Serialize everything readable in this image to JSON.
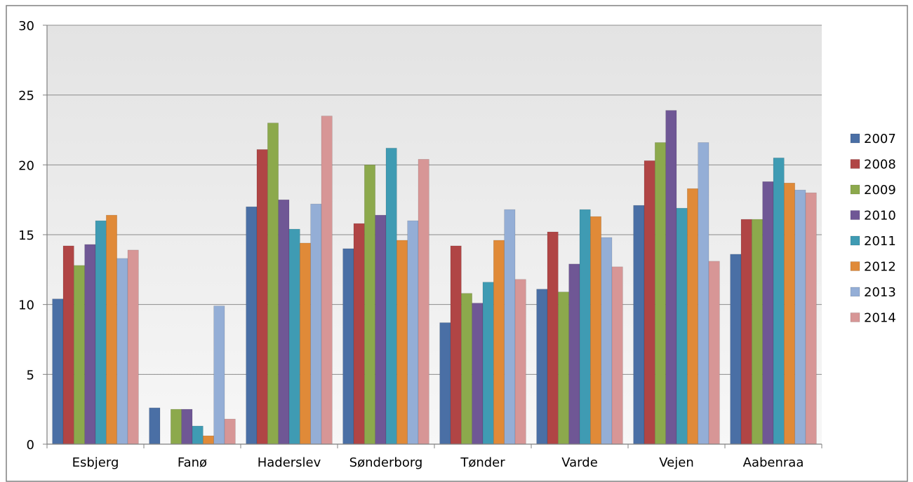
{
  "chart_data": {
    "type": "bar",
    "title": "",
    "xlabel": "",
    "ylabel": "",
    "ylim": [
      0,
      30
    ],
    "yticks": [
      0,
      5,
      10,
      15,
      20,
      25,
      30
    ],
    "grid": true,
    "legend_position": "right",
    "categories": [
      "Esbjerg",
      "Fanø",
      "Haderslev",
      "Sønderborg",
      "Tønder",
      "Varde",
      "Vejen",
      "Aabenraa"
    ],
    "series": [
      {
        "name": "2007",
        "color": "#4a6fa5",
        "values": [
          10.4,
          2.6,
          17.0,
          14.0,
          8.7,
          11.1,
          17.1,
          13.6
        ]
      },
      {
        "name": "2008",
        "color": "#b04545",
        "values": [
          14.2,
          null,
          21.1,
          15.8,
          14.2,
          15.2,
          20.3,
          16.1
        ]
      },
      {
        "name": "2009",
        "color": "#8ca94c",
        "values": [
          12.8,
          2.5,
          23.0,
          20.0,
          10.8,
          10.9,
          21.6,
          16.1
        ]
      },
      {
        "name": "2010",
        "color": "#6f5795",
        "values": [
          14.3,
          2.5,
          17.5,
          16.4,
          10.1,
          12.9,
          23.9,
          18.8
        ]
      },
      {
        "name": "2011",
        "color": "#3f9bb3",
        "values": [
          16.0,
          1.3,
          15.4,
          21.2,
          11.6,
          16.8,
          16.9,
          20.5
        ]
      },
      {
        "name": "2012",
        "color": "#e08a38",
        "values": [
          16.4,
          0.6,
          14.4,
          14.6,
          14.6,
          16.3,
          18.3,
          18.7
        ]
      },
      {
        "name": "2013",
        "color": "#94aed6",
        "values": [
          13.3,
          9.9,
          17.2,
          16.0,
          16.8,
          14.8,
          21.6,
          18.2
        ]
      },
      {
        "name": "2014",
        "color": "#d79696",
        "values": [
          13.9,
          1.8,
          23.5,
          20.4,
          11.8,
          12.7,
          13.1,
          18.0
        ]
      }
    ]
  }
}
